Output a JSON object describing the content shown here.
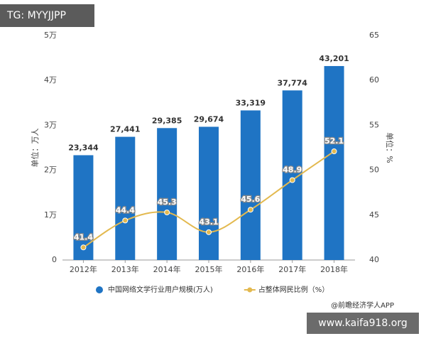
{
  "chart_data": {
    "type": "bar",
    "categories": [
      "2012年",
      "2013年",
      "2014年",
      "2015年",
      "2016年",
      "2017年",
      "2018年"
    ],
    "series": [
      {
        "name": "中国网络文学行业用户规模(万人)",
        "type": "bar",
        "color": "#1f74c4",
        "values": [
          23344,
          27441,
          29385,
          29674,
          33319,
          37774,
          43201
        ],
        "value_labels": [
          "23,344",
          "27,441",
          "29,385",
          "29,674",
          "33,319",
          "37,774",
          "43,201"
        ]
      },
      {
        "name": "占整体网民比例（%）",
        "type": "line",
        "axis": "y2",
        "color": "#e3b94f",
        "values": [
          41.4,
          44.4,
          45.3,
          43.1,
          45.6,
          48.9,
          52.1
        ]
      }
    ],
    "ylim": [
      0,
      50000
    ],
    "yticks": [
      0,
      {
        "value": 10000,
        "label": "1万"
      },
      {
        "value": 20000,
        "label": "2万"
      },
      {
        "value": 30000,
        "label": "3万"
      },
      {
        "value": 40000,
        "label": "4万"
      },
      {
        "value": 50000,
        "label": "5万"
      }
    ],
    "y2lim": [
      40,
      65
    ],
    "y2ticks": [
      40,
      45,
      50,
      55,
      60,
      65
    ],
    "y_label": "单位：万人",
    "y2_label": "单位：%",
    "source": "@前瞻经济学人APP",
    "grid": false
  },
  "overlay_labels": [
    "TG: MYYJJPP",
    "www.kaifa918.org"
  ]
}
